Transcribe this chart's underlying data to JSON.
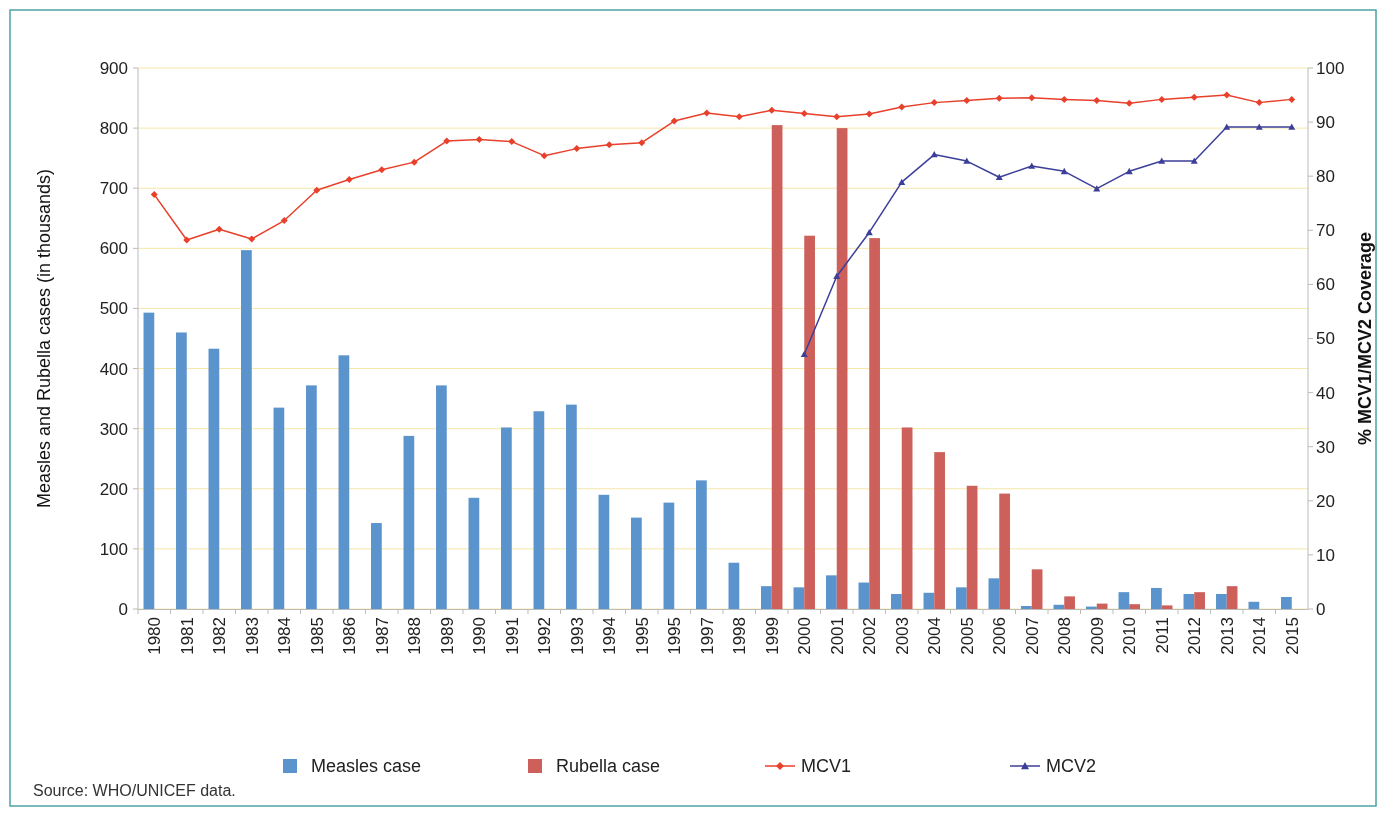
{
  "chart_data": {
    "type": "bar",
    "xlabel": null,
    "ylabel": "Measles and Rubella cases (in thousands)",
    "y2label": "% MCV1/MCV2 Coverage",
    "categories": [
      "1980",
      "1981",
      "1982",
      "1983",
      "1984",
      "1985",
      "1986",
      "1987",
      "1988",
      "1989",
      "1990",
      "1991",
      "1992",
      "1993",
      "1994",
      "1995",
      "1995",
      "1997",
      "1998",
      "1999",
      "2000",
      "2001",
      "2002",
      "2003",
      "2004",
      "2005",
      "2006",
      "2007",
      "2008",
      "2009",
      "2010",
      "2011",
      "2012",
      "2013",
      "2014",
      "2015"
    ],
    "series": [
      {
        "name": "Measles case",
        "color": "#5b93cc",
        "values": [
          493,
          460,
          433,
          597,
          335,
          372,
          422,
          143,
          288,
          372,
          185,
          302,
          329,
          340,
          190,
          152,
          177,
          214,
          77,
          38,
          36,
          56,
          44,
          25,
          27,
          36,
          51,
          5,
          7,
          4,
          28,
          35,
          25,
          25,
          12,
          20
        ]
      },
      {
        "name": "Rubella case",
        "color": "#cd605a",
        "values": [
          null,
          null,
          null,
          null,
          null,
          null,
          null,
          null,
          null,
          null,
          null,
          null,
          null,
          null,
          null,
          null,
          null,
          null,
          null,
          805,
          621,
          800,
          617,
          302,
          261,
          205,
          192,
          66,
          21,
          9,
          8,
          6,
          28,
          38,
          null,
          null
        ]
      },
      {
        "name": "MCV1",
        "type": "line",
        "axis": "y2",
        "color": "#e8402a",
        "marker": "diamond",
        "values": [
          76.6,
          68.2,
          70.2,
          68.4,
          71.8,
          77.4,
          79.4,
          81.2,
          82.6,
          86.5,
          86.8,
          86.4,
          83.8,
          85.1,
          85.8,
          86.2,
          90.2,
          91.7,
          91.0,
          92.2,
          91.6,
          91.0,
          91.5,
          92.8,
          93.6,
          94.0,
          94.4,
          94.5,
          94.2,
          94.0,
          93.5,
          94.2,
          94.6,
          95.0,
          93.6,
          94.2
        ]
      },
      {
        "name": "MCV2",
        "type": "line",
        "axis": "y2",
        "color": "#3c3f99",
        "marker": "triangle",
        "values": [
          null,
          null,
          null,
          null,
          null,
          null,
          null,
          null,
          null,
          null,
          null,
          null,
          null,
          null,
          null,
          null,
          null,
          null,
          null,
          null,
          47.1,
          61.5,
          69.6,
          78.9,
          84.0,
          82.8,
          79.8,
          81.9,
          80.9,
          77.7,
          80.9,
          82.8,
          82.8,
          89.1,
          89.1,
          89.1
        ]
      }
    ],
    "ylim": [
      0,
      900
    ],
    "yticks": [
      0,
      100,
      200,
      300,
      400,
      500,
      600,
      700,
      800,
      900
    ],
    "y2lim": [
      0,
      100
    ],
    "y2ticks": [
      0,
      10,
      20,
      30,
      40,
      50,
      60,
      70,
      80,
      90,
      100
    ],
    "grid": "y",
    "legend": "bottom",
    "line_style": "solid",
    "annotations": [
      "Source: WHO/UNICEF data."
    ]
  }
}
